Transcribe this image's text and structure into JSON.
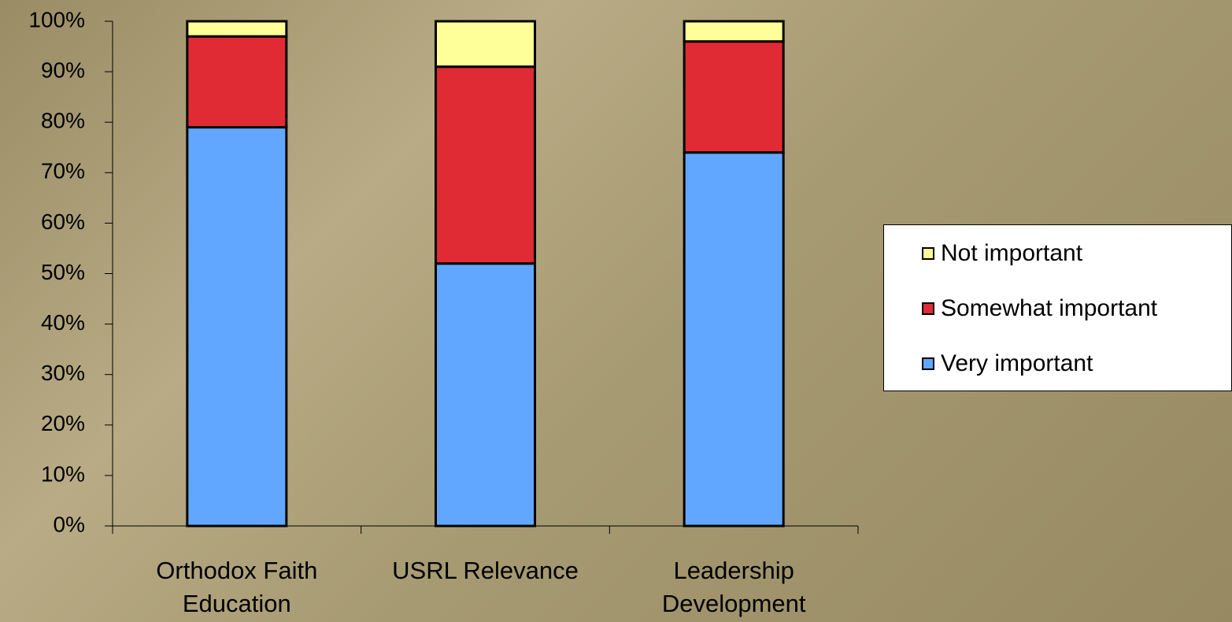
{
  "chart_data": {
    "type": "stacked_bar",
    "categories": [
      "Orthodox Faith Education",
      "USRL Relevance",
      "Leadership Development"
    ],
    "series": [
      {
        "name": "Very important",
        "color": "#62a7ff",
        "values": [
          79,
          52,
          74
        ]
      },
      {
        "name": "Somewhat important",
        "color": "#e02b35",
        "values": [
          18,
          39,
          22
        ]
      },
      {
        "name": "Not important",
        "color": "#ffff99",
        "values": [
          3,
          9,
          4
        ]
      }
    ],
    "ylim": [
      0,
      100
    ],
    "yticks": [
      {
        "value": 0,
        "label": "0%"
      },
      {
        "value": 10,
        "label": "10%"
      },
      {
        "value": 20,
        "label": "20%"
      },
      {
        "value": 30,
        "label": "30%"
      },
      {
        "value": 40,
        "label": "40%"
      },
      {
        "value": 50,
        "label": "50%"
      },
      {
        "value": 60,
        "label": "60%"
      },
      {
        "value": 70,
        "label": "70%"
      },
      {
        "value": 80,
        "label": "80%"
      },
      {
        "value": 90,
        "label": "90%"
      },
      {
        "value": 100,
        "label": "100%"
      }
    ],
    "legend": "right"
  }
}
